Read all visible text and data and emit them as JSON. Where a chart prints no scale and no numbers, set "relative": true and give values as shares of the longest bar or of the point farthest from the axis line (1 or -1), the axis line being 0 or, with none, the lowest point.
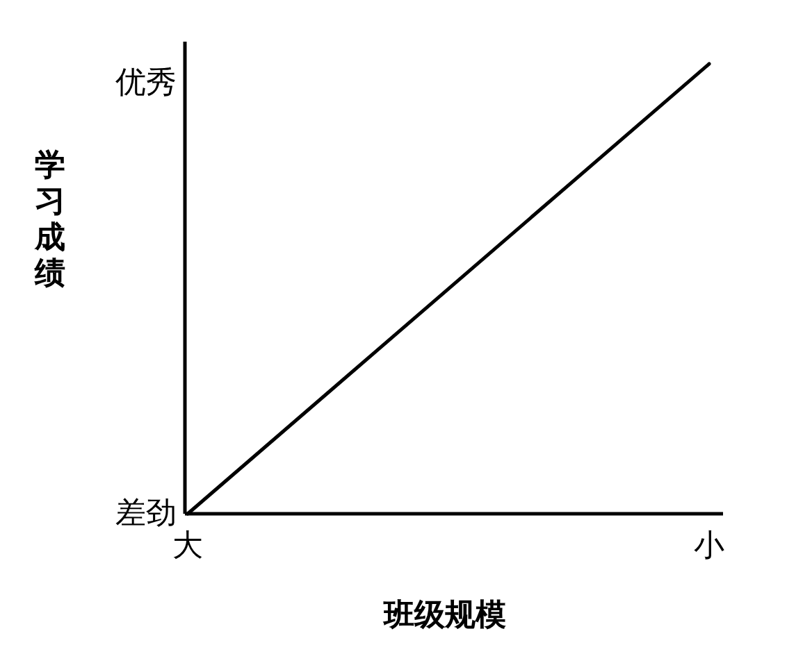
{
  "chart_data": {
    "type": "line",
    "xlabel": "班级规模",
    "ylabel": "学习成绩",
    "categories": [
      "大",
      "小"
    ],
    "values": [
      0,
      1
    ],
    "color": "#000000",
    "relative": true,
    "annotations": [
      "差劲",
      "优秀"
    ]
  }
}
